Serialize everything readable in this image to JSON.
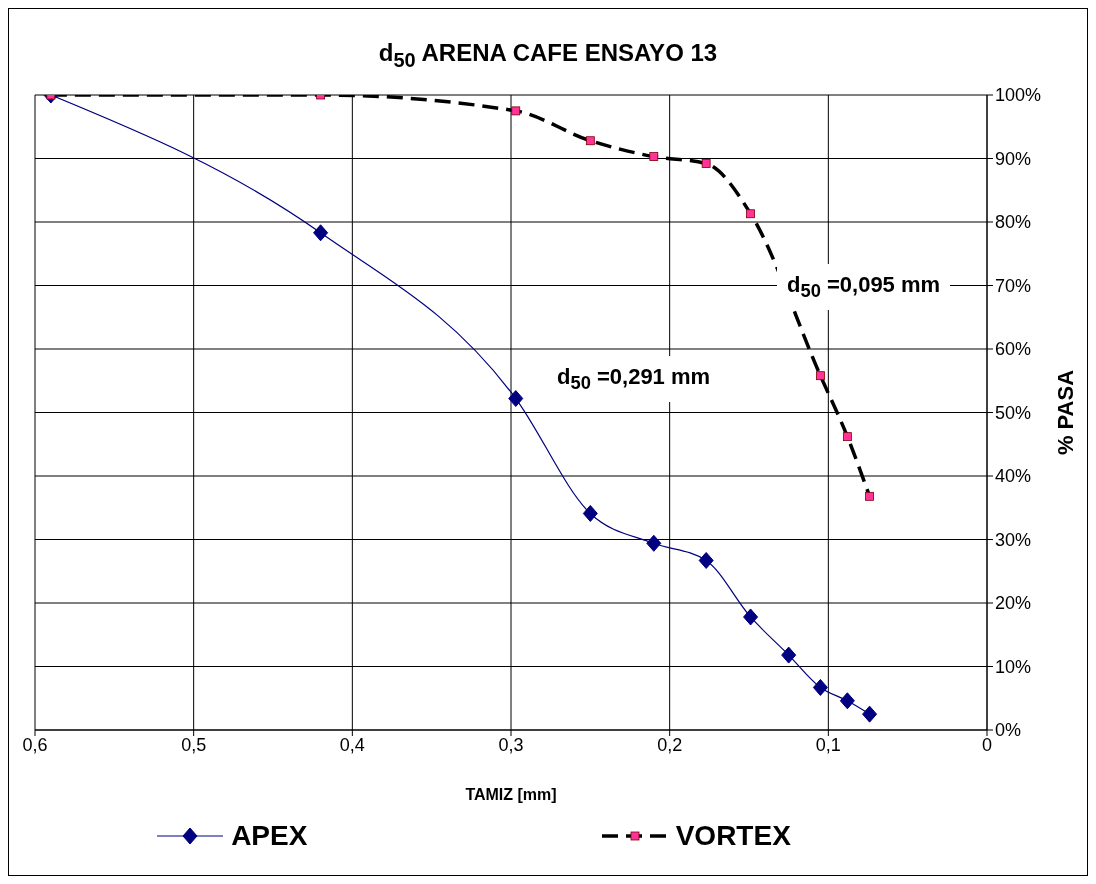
{
  "chart_data": {
    "type": "line",
    "title": "d$_{50}$ ARENA CAFE  ENSAYO 13",
    "xlabel": "TAMIZ [mm]",
    "ylabel": "% PASA",
    "x": [
      0.59,
      0.42,
      0.297,
      0.25,
      0.21,
      0.177,
      0.149,
      0.125,
      0.105,
      0.088,
      0.074
    ],
    "series": [
      {
        "name": "APEX",
        "color": "#000080",
        "marker": "diamond",
        "line_style": "solid",
        "values": [
          100,
          78.3,
          52.2,
          34.1,
          29.4,
          26.7,
          17.8,
          11.8,
          6.7,
          4.6,
          2.5
        ]
      },
      {
        "name": "VORTEX",
        "color": "#ff3399",
        "marker": "square",
        "line_style": "dashed",
        "values": [
          100,
          100,
          97.5,
          92.8,
          90.3,
          89.2,
          81.3,
          null,
          55.8,
          46.2,
          36.8
        ]
      }
    ],
    "xlim": [
      0.6,
      0
    ],
    "xticks": [
      {
        "value": 0.6,
        "label": "0,6"
      },
      {
        "value": 0.5,
        "label": "0,5"
      },
      {
        "value": 0.4,
        "label": "0,4"
      },
      {
        "value": 0.3,
        "label": "0,3"
      },
      {
        "value": 0.2,
        "label": "0,2"
      },
      {
        "value": 0.1,
        "label": "0,1"
      },
      0
    ],
    "ylim": [
      0,
      100
    ],
    "yticks": [
      {
        "value": 0,
        "label": "0%"
      },
      {
        "value": 10,
        "label": "10%"
      },
      {
        "value": 20,
        "label": "20%"
      },
      {
        "value": 30,
        "label": "30%"
      },
      {
        "value": 40,
        "label": "40%"
      },
      {
        "value": 50,
        "label": "50%"
      },
      {
        "value": 60,
        "label": "60%"
      },
      {
        "value": 70,
        "label": "70%"
      },
      {
        "value": 80,
        "label": "80%"
      },
      {
        "value": 90,
        "label": "90%"
      },
      {
        "value": 100,
        "label": "100%"
      }
    ],
    "annotations": [
      "d$_{50}$ =0,291 mm",
      "d$_{50}$ =0,095 mm"
    ],
    "grid": true,
    "legend": "bottom"
  }
}
